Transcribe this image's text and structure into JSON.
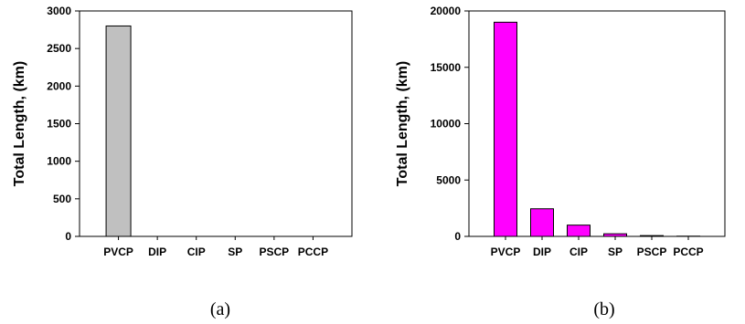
{
  "chart_data": [
    {
      "type": "bar",
      "panel_label": "(a)",
      "ylabel": "Total Length, (km)",
      "xlabel": "",
      "categories": [
        "PVCP",
        "DIP",
        "CIP",
        "SP",
        "PSCP",
        "PCCP"
      ],
      "values": [
        2800,
        0,
        0,
        0,
        0,
        0
      ],
      "ylim": [
        0,
        3000
      ],
      "yticks": [
        0,
        500,
        1000,
        1500,
        2000,
        2500,
        3000
      ],
      "bar_color": "#c0c0c0",
      "grid": false,
      "legend": "none"
    },
    {
      "type": "bar",
      "panel_label": "(b)",
      "ylabel": "Total Length, (km)",
      "xlabel": "",
      "categories": [
        "PVCP",
        "DIP",
        "CIP",
        "SP",
        "PSCP",
        "PCCP"
      ],
      "values": [
        19000,
        2450,
        1000,
        230,
        70,
        20
      ],
      "ylim": [
        0,
        20000
      ],
      "yticks": [
        0,
        5000,
        10000,
        15000,
        20000
      ],
      "bar_color": "#ff00ff",
      "grid": false,
      "legend": "none"
    }
  ]
}
